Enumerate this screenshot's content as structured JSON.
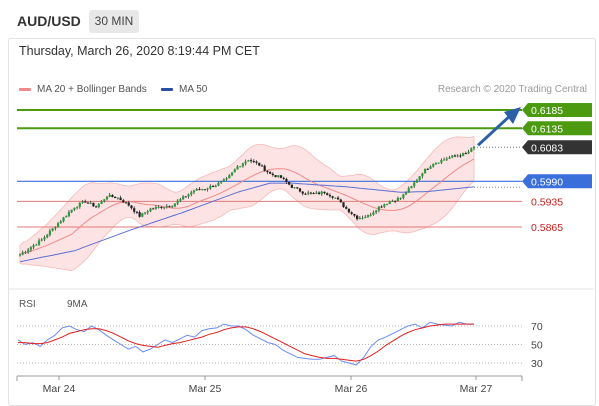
{
  "header": {
    "symbol": "AUD/USD",
    "timeframe": "30 MIN",
    "timestamp": "Thursday, March 26, 2020 8:19:44 PM CET"
  },
  "legend": {
    "bollinger_label": "MA 20 + Bollinger Bands",
    "ma50_label": "MA 50",
    "credit": "Research © 2020 Trading Central",
    "rsi_label": "RSI",
    "rsi_ma_label": "9MA"
  },
  "colors": {
    "candle_up": "#2a9d3a",
    "candle_down": "#222222",
    "bollinger": "#f4a4a4",
    "bollinger_fill": "#fde3e3",
    "ma50": "#5b6fd6",
    "resistance": "#4c9a10",
    "pivot": "#3a6fdb",
    "support": "#e07a7a",
    "support_text": "#cc1f1f",
    "current": "#333333",
    "arrow": "#2b5fa8",
    "rsi": "#6c8df0",
    "rsi_ma": "#e02020"
  },
  "chart_data": [
    {
      "type": "candlestick",
      "title": "AUD/USD 30 MIN",
      "x_labels": [
        "Mar 24",
        "Mar 25",
        "Mar 26",
        "Mar 27"
      ],
      "ylim": [
        0.575,
        0.62
      ],
      "price_levels": [
        {
          "value": 0.6185,
          "label": "0.6185",
          "role": "resistance"
        },
        {
          "value": 0.6135,
          "label": "0.6135",
          "role": "resistance"
        },
        {
          "value": 0.6083,
          "label": "0.6083",
          "role": "current"
        },
        {
          "value": 0.599,
          "label": "0.5990",
          "role": "pivot"
        },
        {
          "value": 0.5935,
          "label": "0.5935",
          "role": "support"
        },
        {
          "value": 0.5865,
          "label": "0.5865",
          "role": "support"
        }
      ],
      "close_path": [
        [
          0,
          0.579
        ],
        [
          4,
          0.581
        ],
        [
          8,
          0.583
        ],
        [
          12,
          0.586
        ],
        [
          16,
          0.589
        ],
        [
          20,
          0.592
        ],
        [
          24,
          0.5935
        ],
        [
          28,
          0.592
        ],
        [
          32,
          0.595
        ],
        [
          36,
          0.5945
        ],
        [
          40,
          0.5925
        ],
        [
          44,
          0.5895
        ],
        [
          48,
          0.5915
        ],
        [
          52,
          0.592
        ],
        [
          56,
          0.5925
        ],
        [
          60,
          0.5945
        ],
        [
          64,
          0.5965
        ],
        [
          68,
          0.597
        ],
        [
          72,
          0.598
        ],
        [
          76,
          0.5995
        ],
        [
          80,
          0.603
        ],
        [
          84,
          0.605
        ],
        [
          88,
          0.6035
        ],
        [
          92,
          0.601
        ],
        [
          96,
          0.6
        ],
        [
          100,
          0.5975
        ],
        [
          104,
          0.596
        ],
        [
          108,
          0.5955
        ],
        [
          112,
          0.596
        ],
        [
          116,
          0.5945
        ],
        [
          120,
          0.5915
        ],
        [
          124,
          0.589
        ],
        [
          128,
          0.5895
        ],
        [
          132,
          0.592
        ],
        [
          136,
          0.5935
        ],
        [
          140,
          0.5945
        ],
        [
          144,
          0.5975
        ],
        [
          148,
          0.6015
        ],
        [
          152,
          0.604
        ],
        [
          156,
          0.605
        ],
        [
          160,
          0.606
        ],
        [
          164,
          0.6065
        ],
        [
          167,
          0.6083
        ]
      ],
      "ma50_path": [
        [
          0,
          0.577
        ],
        [
          20,
          0.58
        ],
        [
          40,
          0.5855
        ],
        [
          60,
          0.5905
        ],
        [
          80,
          0.596
        ],
        [
          92,
          0.5985
        ],
        [
          100,
          0.5985
        ],
        [
          120,
          0.5975
        ],
        [
          140,
          0.596
        ],
        [
          150,
          0.5962
        ],
        [
          167,
          0.5975
        ]
      ],
      "arrow": {
        "from": [
          167,
          0.6083
        ],
        "to": [
          183,
          0.6185
        ]
      }
    },
    {
      "type": "line",
      "title": "RSI",
      "ylim": [
        20,
        80
      ],
      "y_ticks": [
        70,
        50,
        30
      ],
      "series": [
        {
          "name": "RSI",
          "values": [
            55,
            50,
            52,
            48,
            55,
            60,
            68,
            70,
            66,
            64,
            70,
            66,
            60,
            55,
            50,
            45,
            48,
            42,
            45,
            50,
            55,
            52,
            56,
            60,
            58,
            65,
            67,
            68,
            72,
            70,
            70,
            66,
            60,
            56,
            52,
            50,
            44,
            40,
            36,
            35,
            34,
            34,
            36,
            38,
            32,
            30,
            28,
            36,
            48,
            55,
            58,
            62,
            66,
            70,
            72,
            68,
            74,
            72,
            71,
            70,
            74,
            72,
            72
          ]
        },
        {
          "name": "9MA",
          "values": [
            52,
            52,
            51,
            51,
            52,
            55,
            58,
            62,
            64,
            66,
            67,
            67,
            65,
            62,
            58,
            54,
            51,
            49,
            48,
            47,
            49,
            51,
            52,
            54,
            56,
            58,
            61,
            63,
            66,
            68,
            69,
            69,
            67,
            64,
            60,
            56,
            52,
            48,
            44,
            40,
            38,
            36,
            35,
            35,
            34,
            33,
            32,
            34,
            38,
            43,
            49,
            54,
            59,
            63,
            66,
            68,
            70,
            71,
            72,
            72,
            72,
            72,
            72
          ]
        }
      ]
    }
  ]
}
